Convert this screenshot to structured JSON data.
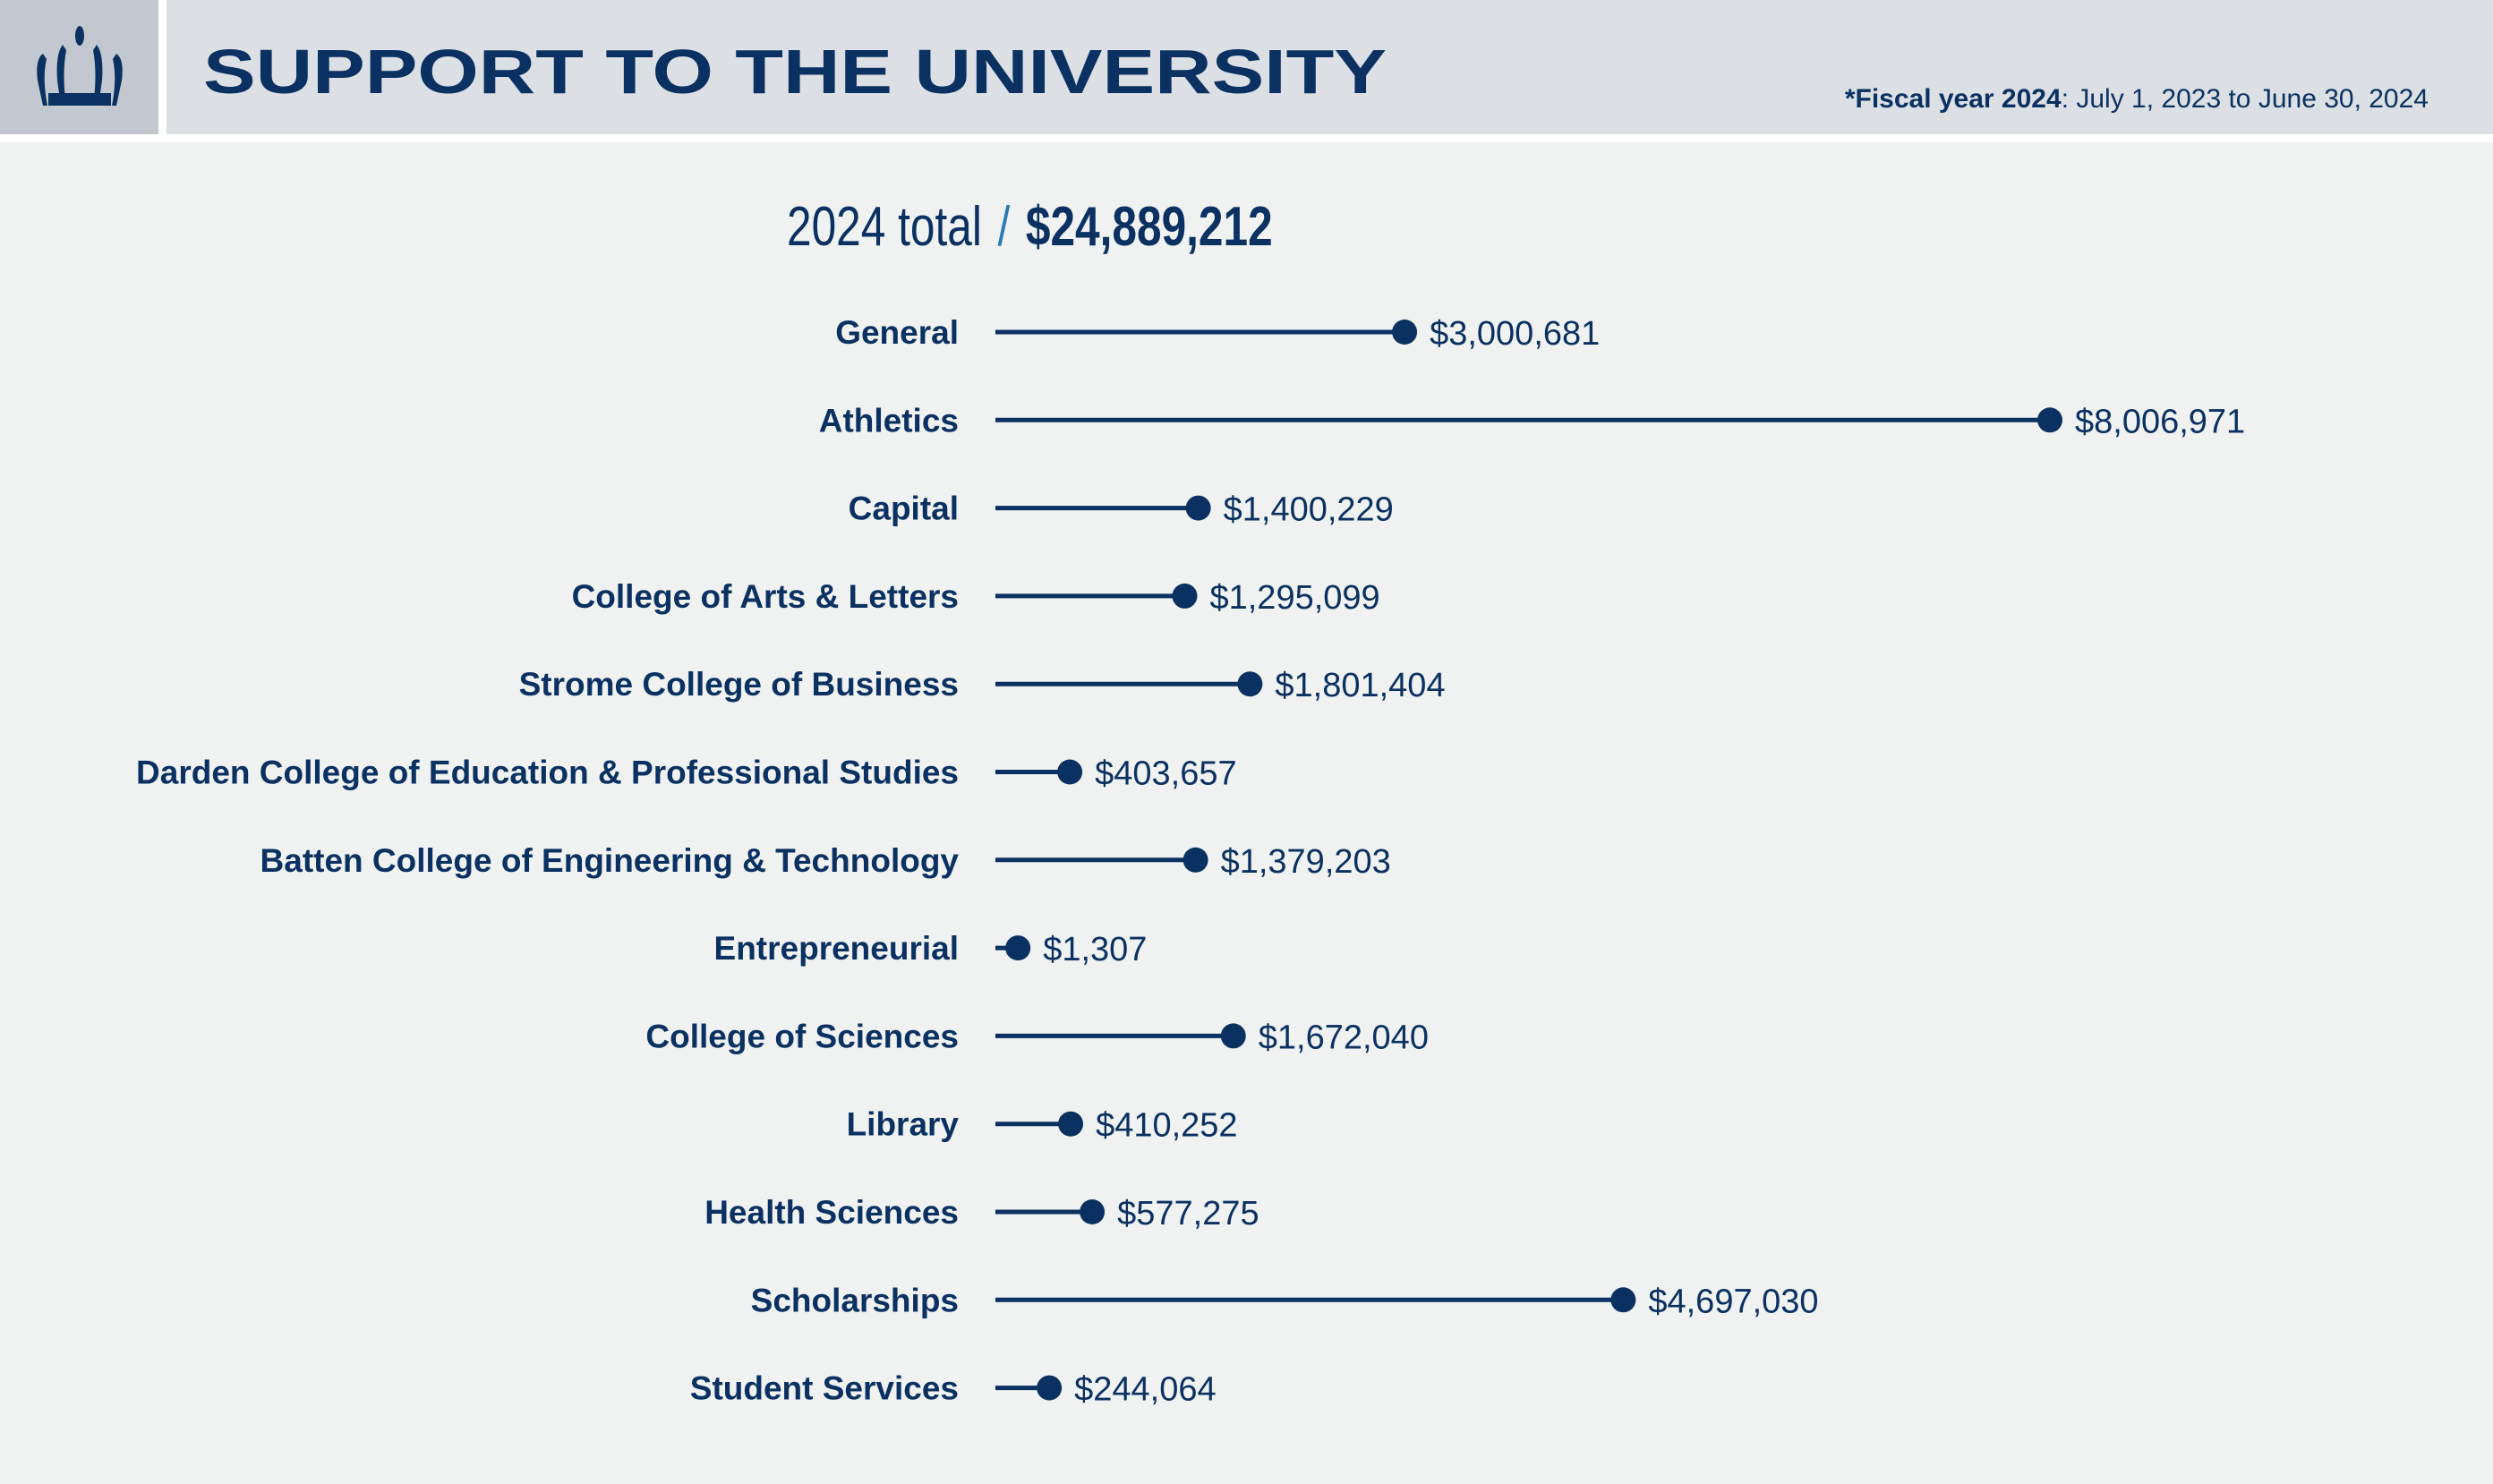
{
  "header": {
    "title": "SUPPORT TO THE UNIVERSITY",
    "fiscal_bold": "*Fiscal year 2024",
    "fiscal_rest": ": July 1, 2023 to June 30, 2024",
    "logo_icon": "crown-icon"
  },
  "total": {
    "label": "2024 total",
    "separator": "/",
    "amount": "$24,889,212"
  },
  "colors": {
    "navy": "#0a3161",
    "accent": "#2a7ab5"
  },
  "chart_data": {
    "type": "lollipop",
    "title": "2024 total / $24,889,212",
    "orientation": "horizontal",
    "categories": [
      "General",
      "Athletics",
      "Capital",
      "College of Arts & Letters",
      "Strome College of Business",
      "Darden College of Education & Professional Studies",
      "Batten College of Engineering & Technology",
      "Entrepreneurial",
      "College of Sciences",
      "Library",
      "Health Sciences",
      "Scholarships",
      "Student Services"
    ],
    "values": [
      3000681,
      8006971,
      1400229,
      1295099,
      1801404,
      403657,
      1379203,
      1307,
      1672040,
      410252,
      577275,
      4697030,
      244064
    ],
    "value_labels": [
      "$3,000,681",
      "$8,006,971",
      "$1,400,229",
      "$1,295,099",
      "$1,801,404",
      "$403,657",
      "$1,379,203",
      "$1,307",
      "$1,672,040",
      "$410,252",
      "$577,275",
      "$4,697,030",
      "$244,064"
    ],
    "xlabel": "",
    "ylabel": "",
    "grid": false
  }
}
